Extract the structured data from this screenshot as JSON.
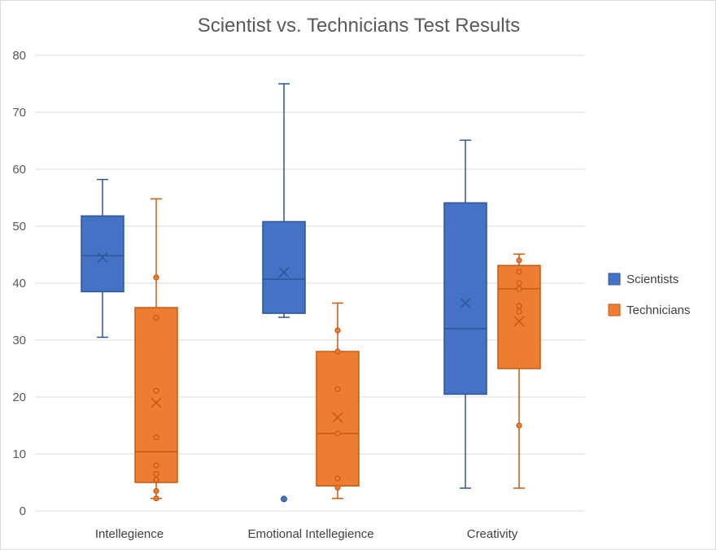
{
  "chart_data": {
    "type": "box",
    "title": "Scientist vs. Technicians Test Results",
    "xlabel": "",
    "ylabel": "",
    "ylim": [
      0,
      80
    ],
    "y_ticks": [
      0,
      10,
      20,
      30,
      40,
      50,
      60,
      70,
      80
    ],
    "grid": true,
    "legend_position": "right",
    "categories": [
      "Intellegience",
      "Emotional Intellegience",
      "Creativity"
    ],
    "series": [
      {
        "name": "Scientists",
        "color": "#4472C4",
        "border": "#2F5597",
        "boxes": [
          {
            "min": 30.5,
            "q1": 38.5,
            "median": 44.8,
            "q3": 51.8,
            "max": 58.2,
            "mean": 44.5,
            "points": [],
            "outliers": []
          },
          {
            "min": 34.0,
            "q1": 34.7,
            "median": 40.7,
            "q3": 50.8,
            "max": 75.0,
            "mean": 41.9,
            "points": [],
            "outliers": [
              2.1
            ]
          },
          {
            "min": 4.0,
            "q1": 20.5,
            "median": 32.0,
            "q3": 54.1,
            "max": 65.1,
            "mean": 36.5,
            "points": [],
            "outliers": []
          }
        ]
      },
      {
        "name": "Technicians",
        "color": "#ED7D31",
        "border": "#C55A11",
        "boxes": [
          {
            "min": 2.2,
            "q1": 5.0,
            "median": 10.4,
            "q3": 35.7,
            "max": 54.8,
            "mean": 19.0,
            "points": [
              2.2,
              3.5,
              5.5,
              6.5,
              8.0,
              12.9,
              21.1,
              33.9,
              41.0
            ],
            "outliers": []
          },
          {
            "min": 2.2,
            "q1": 4.4,
            "median": 13.6,
            "q3": 28.0,
            "max": 36.5,
            "mean": 16.4,
            "points": [
              4.1,
              5.7,
              13.6,
              21.4,
              28.0,
              31.7
            ],
            "outliers": []
          },
          {
            "min": 4.0,
            "q1": 25.0,
            "median": 39.0,
            "q3": 43.1,
            "max": 45.1,
            "mean": 33.3,
            "points": [
              15.0,
              35.0,
              36.0,
              39.0,
              40.0,
              42.0,
              44.0
            ],
            "outliers": []
          }
        ]
      }
    ]
  }
}
